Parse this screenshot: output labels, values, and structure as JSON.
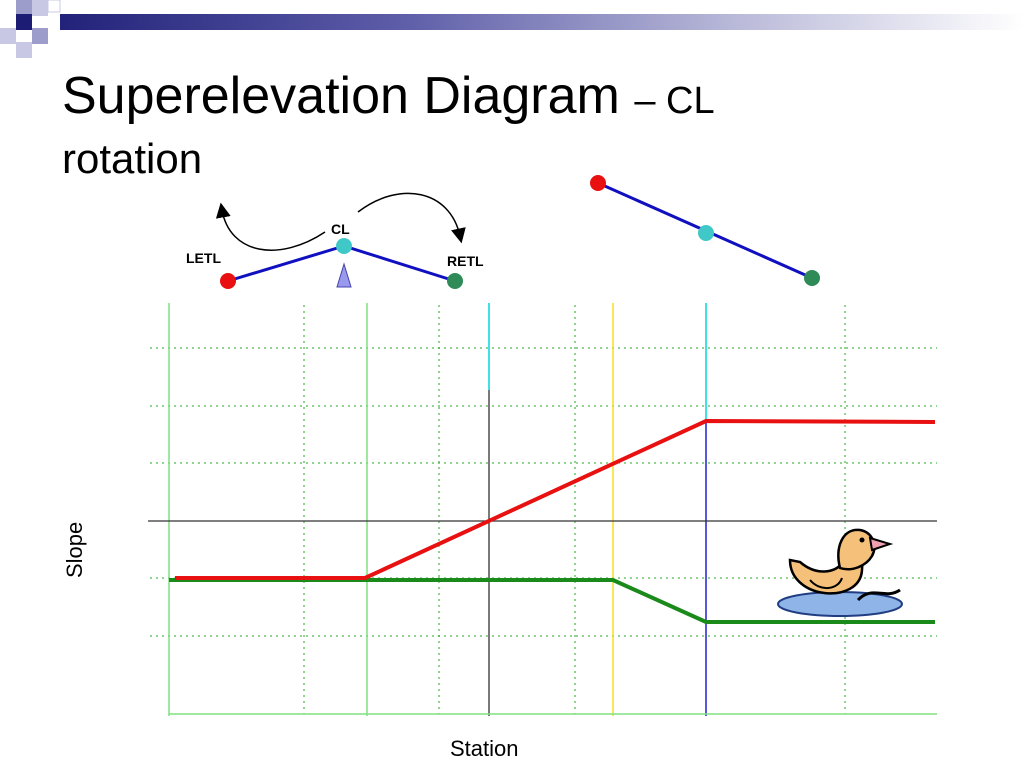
{
  "title": {
    "main": "Superelevation Diagram",
    "suffix": "– CL",
    "line2": "rotation"
  },
  "labels": {
    "letl": "LETL",
    "cl": "CL",
    "retl": "RETL"
  },
  "axes": {
    "x_label": "Station",
    "y_label": "Slope"
  },
  "colors": {
    "left_edge": "#e81010",
    "right_edge": "#1a8a1a",
    "centerline": "#40c8c8",
    "rotated_line": "#1010c0",
    "grid": "#22aa22",
    "axis": "#333333",
    "station_yellow": "#f5e020",
    "station_blue": "#2020d0",
    "station_cyan": "#40e0e8",
    "station_green": "#80e080"
  },
  "icons": {
    "duck": "duck-clipart-icon",
    "pivot": "pivot-triangle-icon"
  }
}
